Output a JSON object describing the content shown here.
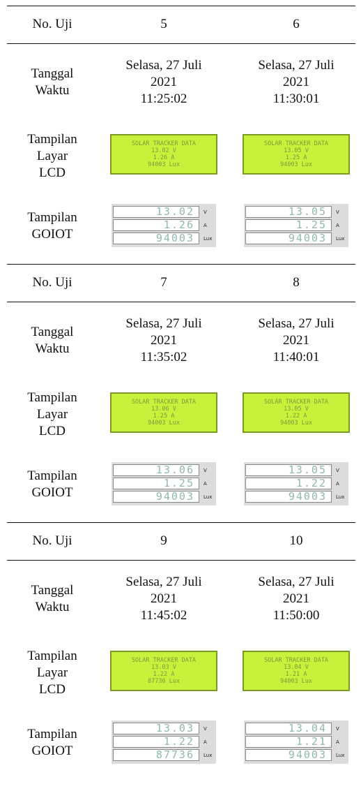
{
  "row_labels": {
    "no": "No. Uji",
    "date": [
      "Tanggal",
      "Waktu"
    ],
    "lcd": [
      "Tampilan",
      "Layar",
      "LCD"
    ],
    "goiot": [
      "Tampilan",
      "GOIOT"
    ]
  },
  "goiot_units": [
    "V",
    "A",
    "Lux"
  ],
  "blocks": [
    {
      "tests": [
        {
          "no": "5",
          "date": [
            "Selasa, 27 Juli",
            "2021",
            "11:25:02"
          ],
          "lcd": [
            "SOLAR TRACKER DATA",
            "13.02 V",
            "1.26 A",
            "94003 Lux"
          ],
          "goiot": [
            "13.02",
            "1.26",
            "94003"
          ]
        },
        {
          "no": "6",
          "date": [
            "Selasa, 27 Juli",
            "2021",
            "11:30:01"
          ],
          "lcd": [
            "SOLAR TRACKER DATA",
            "13.05 V",
            "1.25 A",
            "94003 Lux"
          ],
          "goiot": [
            "13.05",
            "1.25",
            "94003"
          ]
        }
      ]
    },
    {
      "tests": [
        {
          "no": "7",
          "date": [
            "Selasa, 27 Juli",
            "2021",
            "11:35:02"
          ],
          "lcd": [
            "SOLAR TRACKER DATA",
            "13.06 V",
            "1.25 A",
            "94003 Lux"
          ],
          "goiot": [
            "13.06",
            "1.25",
            "94003"
          ]
        },
        {
          "no": "8",
          "date": [
            "Selasa, 27 Juli",
            "2021",
            "11:40:01"
          ],
          "lcd": [
            "SOLAR TRACKER DATA",
            "13.05 V",
            "1.22 A",
            "94003 Lux"
          ],
          "goiot": [
            "13.05",
            "1.22",
            "94003"
          ]
        }
      ]
    },
    {
      "tests": [
        {
          "no": "9",
          "date": [
            "Selasa, 27 Juli",
            "2021",
            "11:45:02"
          ],
          "lcd": [
            "SOLAR TRACKER DATA",
            "13.03 V",
            "1.22 A",
            "87736 Lux"
          ],
          "goiot": [
            "13.03",
            "1.22",
            "87736"
          ]
        },
        {
          "no": "10",
          "date": [
            "Selasa, 27 Juli",
            "2021",
            "11:50:00"
          ],
          "lcd": [
            "SOLAR TRACKER DATA",
            "13.04 V",
            "1.21 A",
            "94003 Lux"
          ],
          "goiot": [
            "13.04",
            "1.21",
            "94003"
          ]
        }
      ]
    }
  ]
}
